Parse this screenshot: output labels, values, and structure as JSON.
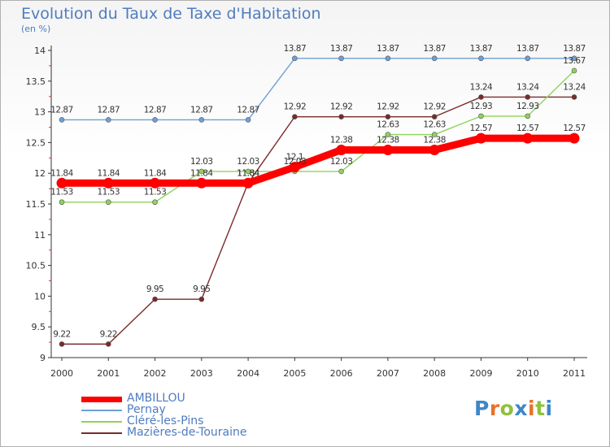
{
  "title": "Evolution du Taux de Taxe d'Habitation",
  "unit": "(en %)",
  "logo": {
    "letters": [
      "P",
      "r",
      "o",
      "x",
      "i",
      "t",
      "i"
    ],
    "colors": [
      "#3f86c9",
      "#e8732a",
      "#8fc13e",
      "#3f86c9",
      "#e8732a",
      "#8fc13e",
      "#3f86c9"
    ]
  },
  "chart_data": {
    "type": "line",
    "title": "Evolution du Taux de Taxe d'Habitation",
    "ylabel": "(en %)",
    "x": [
      "2000",
      "2001",
      "2002",
      "2003",
      "2004",
      "2005",
      "2006",
      "2007",
      "2008",
      "2009",
      "2010",
      "2011"
    ],
    "ylim": [
      9,
      14
    ],
    "yticks": [
      "9",
      "9.5",
      "10",
      "10.5",
      "11",
      "11.5",
      "12",
      "12.5",
      "13",
      "13.5",
      "14"
    ],
    "legend_position": "bottom-left",
    "series": [
      {
        "name": "AMBILLOU",
        "color": "#ff0000",
        "values": [
          11.84,
          11.84,
          11.84,
          11.84,
          11.84,
          12.1,
          12.38,
          12.38,
          12.38,
          12.57,
          12.57,
          12.57
        ],
        "labels": [
          "11.84",
          "11.84",
          "11.84",
          "11.84",
          "11.84",
          "12.1",
          "12.38",
          "12.38",
          "12.38",
          "12.57",
          "12.57",
          "12.57"
        ]
      },
      {
        "name": "Pernay",
        "color": "#6f9fd6",
        "values": [
          12.87,
          12.87,
          12.87,
          12.87,
          12.87,
          13.87,
          13.87,
          13.87,
          13.87,
          13.87,
          13.87,
          13.87
        ],
        "labels": [
          "12.87",
          "12.87",
          "12.87",
          "12.87",
          "12.87",
          "13.87",
          "13.87",
          "13.87",
          "13.87",
          "13.87",
          "13.87",
          "13.87"
        ]
      },
      {
        "name": "Cléré-les-Pins",
        "color": "#8fd35a",
        "values": [
          11.53,
          11.53,
          11.53,
          12.03,
          12.03,
          12.03,
          12.03,
          12.63,
          12.63,
          12.93,
          12.93,
          13.67
        ],
        "labels": [
          "11.53",
          "11.53",
          "11.53",
          "12.03",
          "12.03",
          "12.03",
          "12.03",
          "12.63",
          "12.63",
          "12.93",
          "12.93",
          "13.67"
        ]
      },
      {
        "name": "Mazières-de-Touraine",
        "color": "#7a2a2a",
        "values": [
          9.22,
          9.22,
          9.95,
          9.95,
          11.84,
          12.92,
          12.92,
          12.92,
          12.92,
          13.24,
          13.24,
          13.24
        ],
        "labels": [
          "9.22",
          "9.22",
          "9.95",
          "9.95",
          "11.84",
          "12.92",
          "12.92",
          "12.92",
          "12.92",
          "13.24",
          "13.24",
          "13.24"
        ]
      }
    ]
  }
}
